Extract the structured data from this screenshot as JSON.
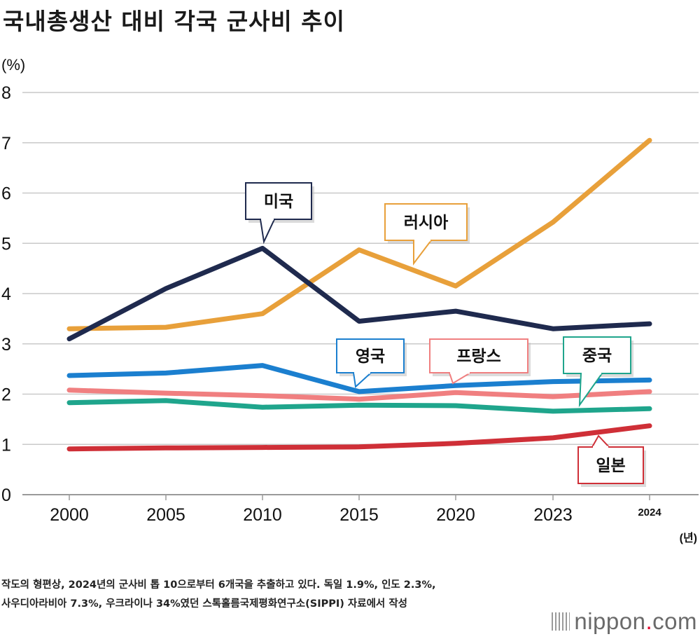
{
  "title": "국내총생산 대비 각국 군사비 추이",
  "chart_data": {
    "type": "line",
    "title": "국내총생산 대비 각국 군사비 추이",
    "ylabel": "(%)",
    "xlabel": "(년)",
    "ylim": [
      0,
      8
    ],
    "yticks": [
      "0",
      "1",
      "2",
      "3",
      "4",
      "5",
      "6",
      "7",
      "8"
    ],
    "categories": [
      "2000",
      "2005",
      "2010",
      "2015",
      "2020",
      "2023",
      "2024"
    ],
    "grid": true,
    "series": [
      {
        "name": "미국",
        "color": "#1f2a4e",
        "values": [
          3.1,
          4.1,
          4.9,
          3.45,
          3.65,
          3.3,
          3.4
        ]
      },
      {
        "name": "러시아",
        "color": "#e8a03a",
        "values": [
          3.3,
          3.33,
          3.6,
          4.87,
          4.15,
          5.42,
          7.05
        ]
      },
      {
        "name": "영국",
        "color": "#1b7fcf",
        "values": [
          2.37,
          2.42,
          2.57,
          2.05,
          2.17,
          2.25,
          2.28
        ]
      },
      {
        "name": "프랑스",
        "color": "#f07f80",
        "values": [
          2.08,
          2.02,
          1.97,
          1.9,
          2.03,
          1.95,
          2.05
        ]
      },
      {
        "name": "중국",
        "color": "#1fa58c",
        "values": [
          1.83,
          1.87,
          1.74,
          1.78,
          1.77,
          1.66,
          1.71
        ]
      },
      {
        "name": "일본",
        "color": "#cf2f37",
        "values": [
          0.91,
          0.93,
          0.94,
          0.95,
          1.02,
          1.13,
          1.37
        ]
      }
    ]
  },
  "footnote": {
    "line1": "작도의 형편상, 2024년의 군사비 톱 10으로부터 6개국을 추출하고 있다. 독일 1.9%, 인도 2.3%,",
    "line2": "사우디아라비아 7.3%, 우크라이나 34%였던 스톡홀름국제평화연구소(SIPPI) 자료에서 작성"
  },
  "brand": {
    "name": "nippon",
    "dot": ".",
    "tld": "com"
  }
}
